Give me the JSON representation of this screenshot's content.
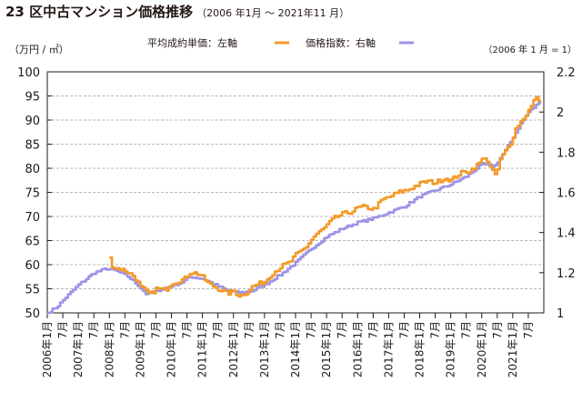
{
  "chart_data": {
    "type": "line",
    "title": "23 区中古マンション価格推移",
    "subtitle": "（2006 年1月 〜 2021年11 月）",
    "left_axis": {
      "label": "（万円 / ㎡）",
      "ylim": [
        50,
        100
      ],
      "ticks": [
        "100",
        "95",
        "90",
        "85",
        "80",
        "75",
        "70",
        "65",
        "60",
        "55",
        "50"
      ]
    },
    "right_axis": {
      "label": "（2006 年 1 月 = 1）",
      "ylim": [
        1.0,
        2.2
      ],
      "ticks": [
        "2.2",
        "2",
        "1.8",
        "1.6",
        "1.4",
        "1.2",
        "1"
      ]
    },
    "grid": true,
    "legend_position": "top-center",
    "x_tick_labels": [
      "2006年1月",
      "7月",
      "2007年1月",
      "7月",
      "2008年1月",
      "7月",
      "2009年1月",
      "7月",
      "2010年1月",
      "7月",
      "2011年1月",
      "7月",
      "2012年1月",
      "7月",
      "2013年1月",
      "7月",
      "2014年1月",
      "7月",
      "2015年1月",
      "7月",
      "2016年1月",
      "7月",
      "2017年1月",
      "7月",
      "2018年1月",
      "7月",
      "2019年1月",
      "7月",
      "2020年1月",
      "7月",
      "2021年1月",
      "7月"
    ],
    "series": [
      {
        "name": "平均成約単価：左軸",
        "axis": "left",
        "color": "#f39a2a",
        "anchors": [
          [
            2008.0,
            61.5
          ],
          [
            2008.1,
            59.5
          ],
          [
            2008.5,
            58.8
          ],
          [
            2008.8,
            57.5
          ],
          [
            2009.0,
            55.3
          ],
          [
            2009.3,
            53.8
          ],
          [
            2009.5,
            55
          ],
          [
            2009.8,
            54.8
          ],
          [
            2010.0,
            56.2
          ],
          [
            2010.4,
            57
          ],
          [
            2010.6,
            58.5
          ],
          [
            2010.9,
            58
          ],
          [
            2011.2,
            56
          ],
          [
            2011.5,
            55
          ],
          [
            2011.8,
            54
          ],
          [
            2012.0,
            54.5
          ],
          [
            2012.2,
            53.5
          ],
          [
            2012.4,
            54.2
          ],
          [
            2012.6,
            55.5
          ],
          [
            2013.0,
            56.5
          ],
          [
            2013.2,
            58
          ],
          [
            2013.5,
            59.5
          ],
          [
            2013.8,
            60.5
          ],
          [
            2014.0,
            62
          ],
          [
            2014.3,
            63.5
          ],
          [
            2014.6,
            66
          ],
          [
            2014.9,
            67.5
          ],
          [
            2015.2,
            69.5
          ],
          [
            2015.5,
            70.5
          ],
          [
            2015.8,
            71
          ],
          [
            2016.0,
            71.8
          ],
          [
            2016.2,
            72
          ],
          [
            2016.5,
            71.5
          ],
          [
            2016.8,
            73.5
          ],
          [
            2017.0,
            74
          ],
          [
            2017.3,
            75
          ],
          [
            2017.6,
            75.5
          ],
          [
            2017.9,
            76.5
          ],
          [
            2018.2,
            77.3
          ],
          [
            2018.5,
            77
          ],
          [
            2018.8,
            78
          ],
          [
            2019.0,
            77.5
          ],
          [
            2019.3,
            79
          ],
          [
            2019.6,
            79.5
          ],
          [
            2019.9,
            81
          ],
          [
            2020.1,
            82.5
          ],
          [
            2020.3,
            79.5
          ],
          [
            2020.45,
            78.5
          ],
          [
            2020.6,
            82
          ],
          [
            2020.9,
            85
          ],
          [
            2021.1,
            88.5
          ],
          [
            2021.4,
            91
          ],
          [
            2021.6,
            93
          ],
          [
            2021.75,
            95
          ],
          [
            2021.87,
            93.5
          ]
        ]
      },
      {
        "name": "価格指数：右軸",
        "axis": "right",
        "color": "#9b94e6",
        "anchors": [
          [
            2006.0,
            1.0
          ],
          [
            2006.3,
            1.03
          ],
          [
            2006.6,
            1.08
          ],
          [
            2007.0,
            1.14
          ],
          [
            2007.5,
            1.2
          ],
          [
            2007.9,
            1.22
          ],
          [
            2008.2,
            1.21
          ],
          [
            2008.6,
            1.18
          ],
          [
            2008.9,
            1.14
          ],
          [
            2009.2,
            1.09
          ],
          [
            2009.5,
            1.11
          ],
          [
            2009.9,
            1.13
          ],
          [
            2010.3,
            1.15
          ],
          [
            2010.6,
            1.18
          ],
          [
            2011.0,
            1.17
          ],
          [
            2011.4,
            1.14
          ],
          [
            2011.8,
            1.11
          ],
          [
            2012.2,
            1.1
          ],
          [
            2012.6,
            1.11
          ],
          [
            2013.0,
            1.14
          ],
          [
            2013.5,
            1.19
          ],
          [
            2014.0,
            1.25
          ],
          [
            2014.5,
            1.32
          ],
          [
            2015.0,
            1.38
          ],
          [
            2015.5,
            1.42
          ],
          [
            2016.0,
            1.45
          ],
          [
            2016.5,
            1.47
          ],
          [
            2017.0,
            1.5
          ],
          [
            2017.5,
            1.53
          ],
          [
            2018.0,
            1.58
          ],
          [
            2018.5,
            1.61
          ],
          [
            2019.0,
            1.64
          ],
          [
            2019.5,
            1.68
          ],
          [
            2020.0,
            1.74
          ],
          [
            2020.4,
            1.73
          ],
          [
            2020.8,
            1.82
          ],
          [
            2021.2,
            1.93
          ],
          [
            2021.5,
            2.0
          ],
          [
            2021.87,
            2.05
          ]
        ]
      }
    ]
  }
}
